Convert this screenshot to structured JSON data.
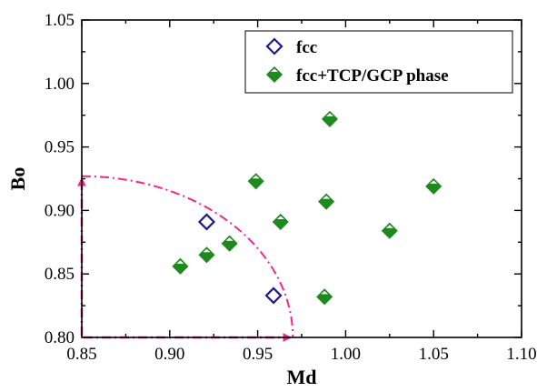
{
  "chart_data": {
    "type": "scatter",
    "xlabel": "Md",
    "ylabel": "Bo",
    "xlim": [
      0.85,
      1.1
    ],
    "ylim": [
      0.8,
      1.05
    ],
    "xticks": [
      "0.85",
      "0.90",
      "0.95",
      "1.00",
      "1.05",
      "1.10"
    ],
    "yticks": [
      "0.80",
      "0.85",
      "0.90",
      "0.95",
      "1.00",
      "1.05"
    ],
    "xtick_values": [
      0.85,
      0.9,
      0.95,
      1.0,
      1.05,
      1.1
    ],
    "ytick_values": [
      0.8,
      0.85,
      0.9,
      0.95,
      1.0,
      1.05
    ],
    "grid": false,
    "legend_position": "top-right",
    "series": [
      {
        "name": "fcc",
        "marker": "open-diamond",
        "color": "#1c1c8c",
        "points": [
          {
            "x": 0.921,
            "y": 0.891
          },
          {
            "x": 0.959,
            "y": 0.833
          }
        ]
      },
      {
        "name": "fcc+TCP/GCP phase",
        "marker": "half-filled-diamond",
        "color": "#1e8a1e",
        "points": [
          {
            "x": 0.906,
            "y": 0.856
          },
          {
            "x": 0.921,
            "y": 0.865
          },
          {
            "x": 0.934,
            "y": 0.874
          },
          {
            "x": 0.949,
            "y": 0.923
          },
          {
            "x": 0.963,
            "y": 0.891
          },
          {
            "x": 0.988,
            "y": 0.832
          },
          {
            "x": 0.989,
            "y": 0.907
          },
          {
            "x": 0.991,
            "y": 0.972
          },
          {
            "x": 1.025,
            "y": 0.884
          },
          {
            "x": 1.05,
            "y": 0.919
          }
        ]
      }
    ],
    "annotation": {
      "shape": "quarter-ellipse-with-arrows",
      "color": "#f0288c",
      "style": "dash-dot",
      "origin": {
        "x": 0.85,
        "y": 0.8
      },
      "x_end": 0.97,
      "y_end": 0.927
    }
  }
}
